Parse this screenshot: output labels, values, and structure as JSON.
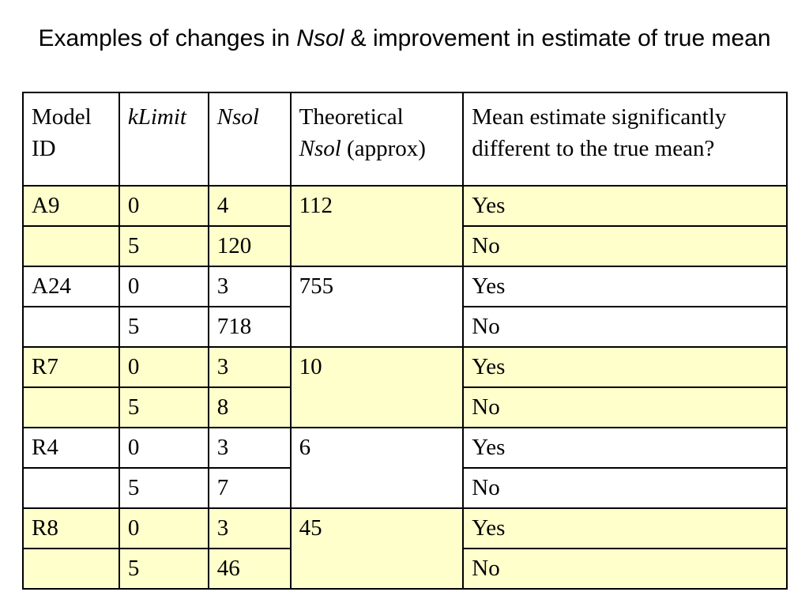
{
  "title": {
    "part1": "Examples of changes in ",
    "italic": "Nsol",
    "part2": " & improvement in estimate of true mean"
  },
  "table": {
    "headers": {
      "model_id": "Model ID",
      "klimit": "kLimit",
      "nsol": "Nsol",
      "theoretical_line1": "Theoretical",
      "theoretical_italic": "Nsol",
      "theoretical_rest": " (approx)",
      "mean_estimate": "Mean estimate significantly different to the true mean?"
    },
    "groups": [
      {
        "model": "A9",
        "theoretical": "112",
        "highlight": "#ffffcc",
        "rows": [
          {
            "klimit": "0",
            "nsol": "4",
            "answer": "Yes"
          },
          {
            "klimit": "5",
            "nsol": "120",
            "answer": "No"
          }
        ]
      },
      {
        "model": "A24",
        "theoretical": "755",
        "highlight": "#ffffff",
        "rows": [
          {
            "klimit": "0",
            "nsol": "3",
            "answer": "Yes"
          },
          {
            "klimit": "5",
            "nsol": "718",
            "answer": "No"
          }
        ]
      },
      {
        "model": "R7",
        "theoretical": "10",
        "highlight": "#ffffcc",
        "rows": [
          {
            "klimit": "0",
            "nsol": "3",
            "answer": "Yes"
          },
          {
            "klimit": "5",
            "nsol": "8",
            "answer": "No"
          }
        ]
      },
      {
        "model": "R4",
        "theoretical": "6",
        "highlight": "#ffffff",
        "rows": [
          {
            "klimit": "0",
            "nsol": "3",
            "answer": "Yes"
          },
          {
            "klimit": "5",
            "nsol": "7",
            "answer": "No"
          }
        ]
      },
      {
        "model": "R8",
        "theoretical": "45",
        "highlight": "#ffffcc",
        "rows": [
          {
            "klimit": "0",
            "nsol": "3",
            "answer": "Yes"
          },
          {
            "klimit": "5",
            "nsol": "46",
            "answer": "No"
          }
        ]
      }
    ]
  }
}
